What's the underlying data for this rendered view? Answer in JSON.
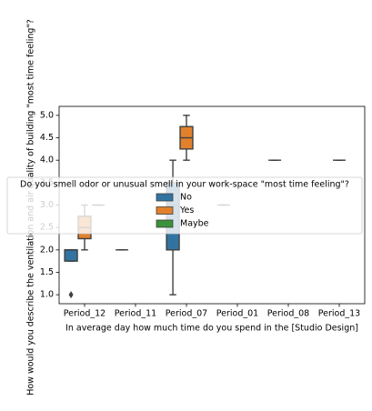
{
  "chart_data": {
    "type": "box",
    "x_label": "In average day how much time do you spend in the [Studio Design]",
    "y_label": "How would you describe the ventilation and air quality of building  \"most time feeling\"?",
    "categories": [
      "Period_12",
      "Period_11",
      "Period_07",
      "Period_01",
      "Period_08",
      "Period_13"
    ],
    "legend_title": "Do you smell odor or unusual smell in your work-space \"most time feeling\"?",
    "legend_position": "center",
    "ylim": [
      0.8,
      5.2
    ],
    "yticks": [
      {
        "value": 1,
        "label": "1.0"
      },
      {
        "value": 1.5,
        "label": "1.5"
      },
      {
        "value": 2,
        "label": "2.0"
      },
      {
        "value": 2.5,
        "label": "2.5"
      },
      {
        "value": 3,
        "label": "3.0"
      },
      {
        "value": 3.5,
        "label": "3.5"
      },
      {
        "value": 4,
        "label": "4.0"
      },
      {
        "value": 4.5,
        "label": "4.5"
      },
      {
        "value": 5,
        "label": "5.0"
      }
    ],
    "series": [
      {
        "name": "No",
        "color": "#3274a1",
        "boxes": [
          {
            "min": 1.75,
            "q1": 1.75,
            "median": 2,
            "q3": 2,
            "max": 2,
            "outliers": [
              1
            ]
          },
          {
            "min": 2,
            "q1": 2,
            "median": 2,
            "q3": 2,
            "max": 2,
            "outliers": []
          },
          {
            "min": 1,
            "q1": 2,
            "median": 3,
            "q3": 3.5,
            "max": 4,
            "outliers": []
          },
          {
            "min": 3,
            "q1": 3,
            "median": 3,
            "q3": 3,
            "max": 3,
            "outliers": []
          },
          {
            "min": 4,
            "q1": 4,
            "median": 4,
            "q3": 4,
            "max": 4,
            "outliers": []
          },
          null
        ]
      },
      {
        "name": "Yes",
        "color": "#e1812c",
        "boxes": [
          {
            "min": 2,
            "q1": 2.25,
            "median": 2.5,
            "q3": 2.75,
            "max": 3,
            "outliers": []
          },
          null,
          {
            "min": 4,
            "q1": 4.25,
            "median": 4.5,
            "q3": 4.75,
            "max": 5,
            "outliers": []
          },
          null,
          null,
          {
            "min": 4,
            "q1": 4,
            "median": 4,
            "q3": 4,
            "max": 4,
            "outliers": []
          }
        ]
      },
      {
        "name": "Maybe",
        "color": "#3a923a",
        "boxes": [
          {
            "min": 3,
            "q1": 3,
            "median": 3,
            "q3": 3,
            "max": 3,
            "outliers": []
          },
          null,
          null,
          null,
          null,
          null
        ]
      }
    ]
  }
}
